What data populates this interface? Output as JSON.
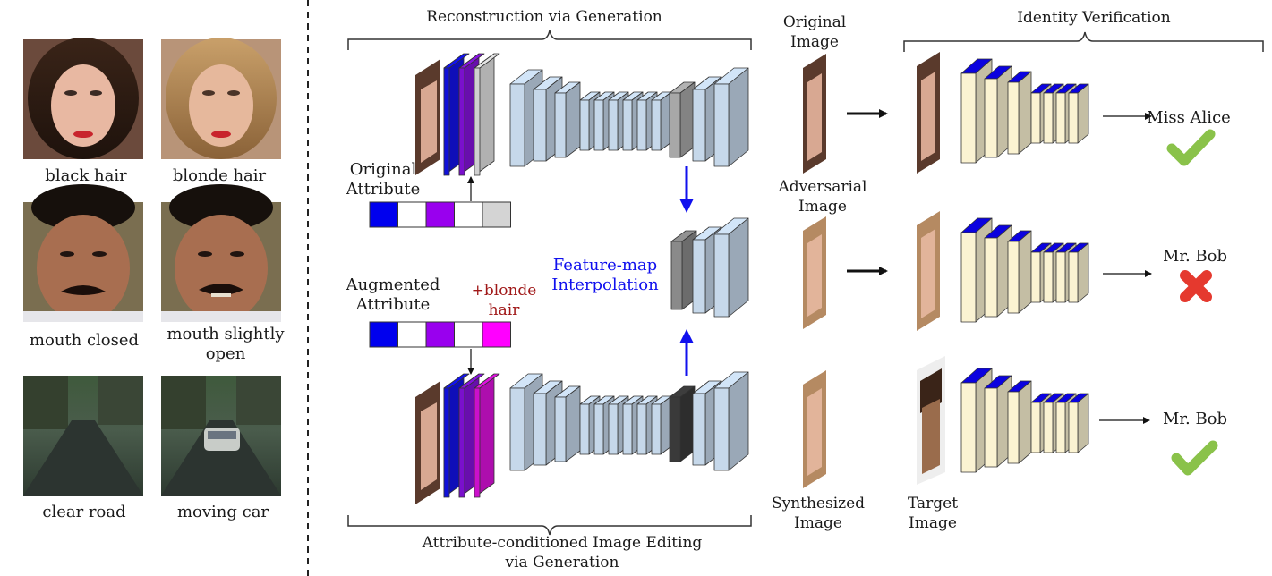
{
  "left_panel": {
    "examples": [
      {
        "caption": "black hair"
      },
      {
        "caption": "blonde hair"
      },
      {
        "caption": "mouth closed"
      },
      {
        "caption": [
          "mouth slightly",
          "open"
        ]
      },
      {
        "caption": "clear road"
      },
      {
        "caption": "moving car"
      }
    ]
  },
  "center": {
    "top_bracket_label": "Reconstruction via Generation",
    "bottom_bracket_label": [
      "Attribute-conditioned Image Editing",
      "via Generation"
    ],
    "original_attribute_label": [
      "Original",
      "Attribute"
    ],
    "augmented_attribute_label": [
      "Augmented",
      "Attribute"
    ],
    "plus_label": [
      "+blonde",
      "hair"
    ],
    "interp_label": [
      "Feature-map",
      "Interpolation"
    ],
    "original_attr_colors": [
      "#0000ee",
      "#ffffff",
      "#9900ee",
      "#ffffff",
      "#d4d4d4"
    ],
    "augmented_attr_colors": [
      "#0000ee",
      "#ffffff",
      "#9900ee",
      "#ffffff",
      "#ff00ff"
    ]
  },
  "right_panel": {
    "images": {
      "original": [
        "Original",
        "Image"
      ],
      "adversarial": [
        "Adversarial",
        "Image"
      ],
      "synthesized": [
        "Synthesized",
        "Image"
      ],
      "target": [
        "Target",
        "Image"
      ]
    },
    "bracket_label": "Identity Verification",
    "results": [
      {
        "label": "Miss Alice",
        "mark": "check-icon"
      },
      {
        "label": "Mr. Bob",
        "mark": "cross-icon"
      },
      {
        "label": "Mr. Bob",
        "mark": "check-icon"
      }
    ]
  },
  "colors": {
    "enc_blue": "#1010d8",
    "enc_purple": "#7a10cc",
    "enc_magenta": "#cc10cc",
    "network_body": "#c6d8ea",
    "verifier_body": "#fbf3d2",
    "check_green": "#8ac24a",
    "cross_red": "#e5392e",
    "arrow_blue": "#1010ee"
  }
}
